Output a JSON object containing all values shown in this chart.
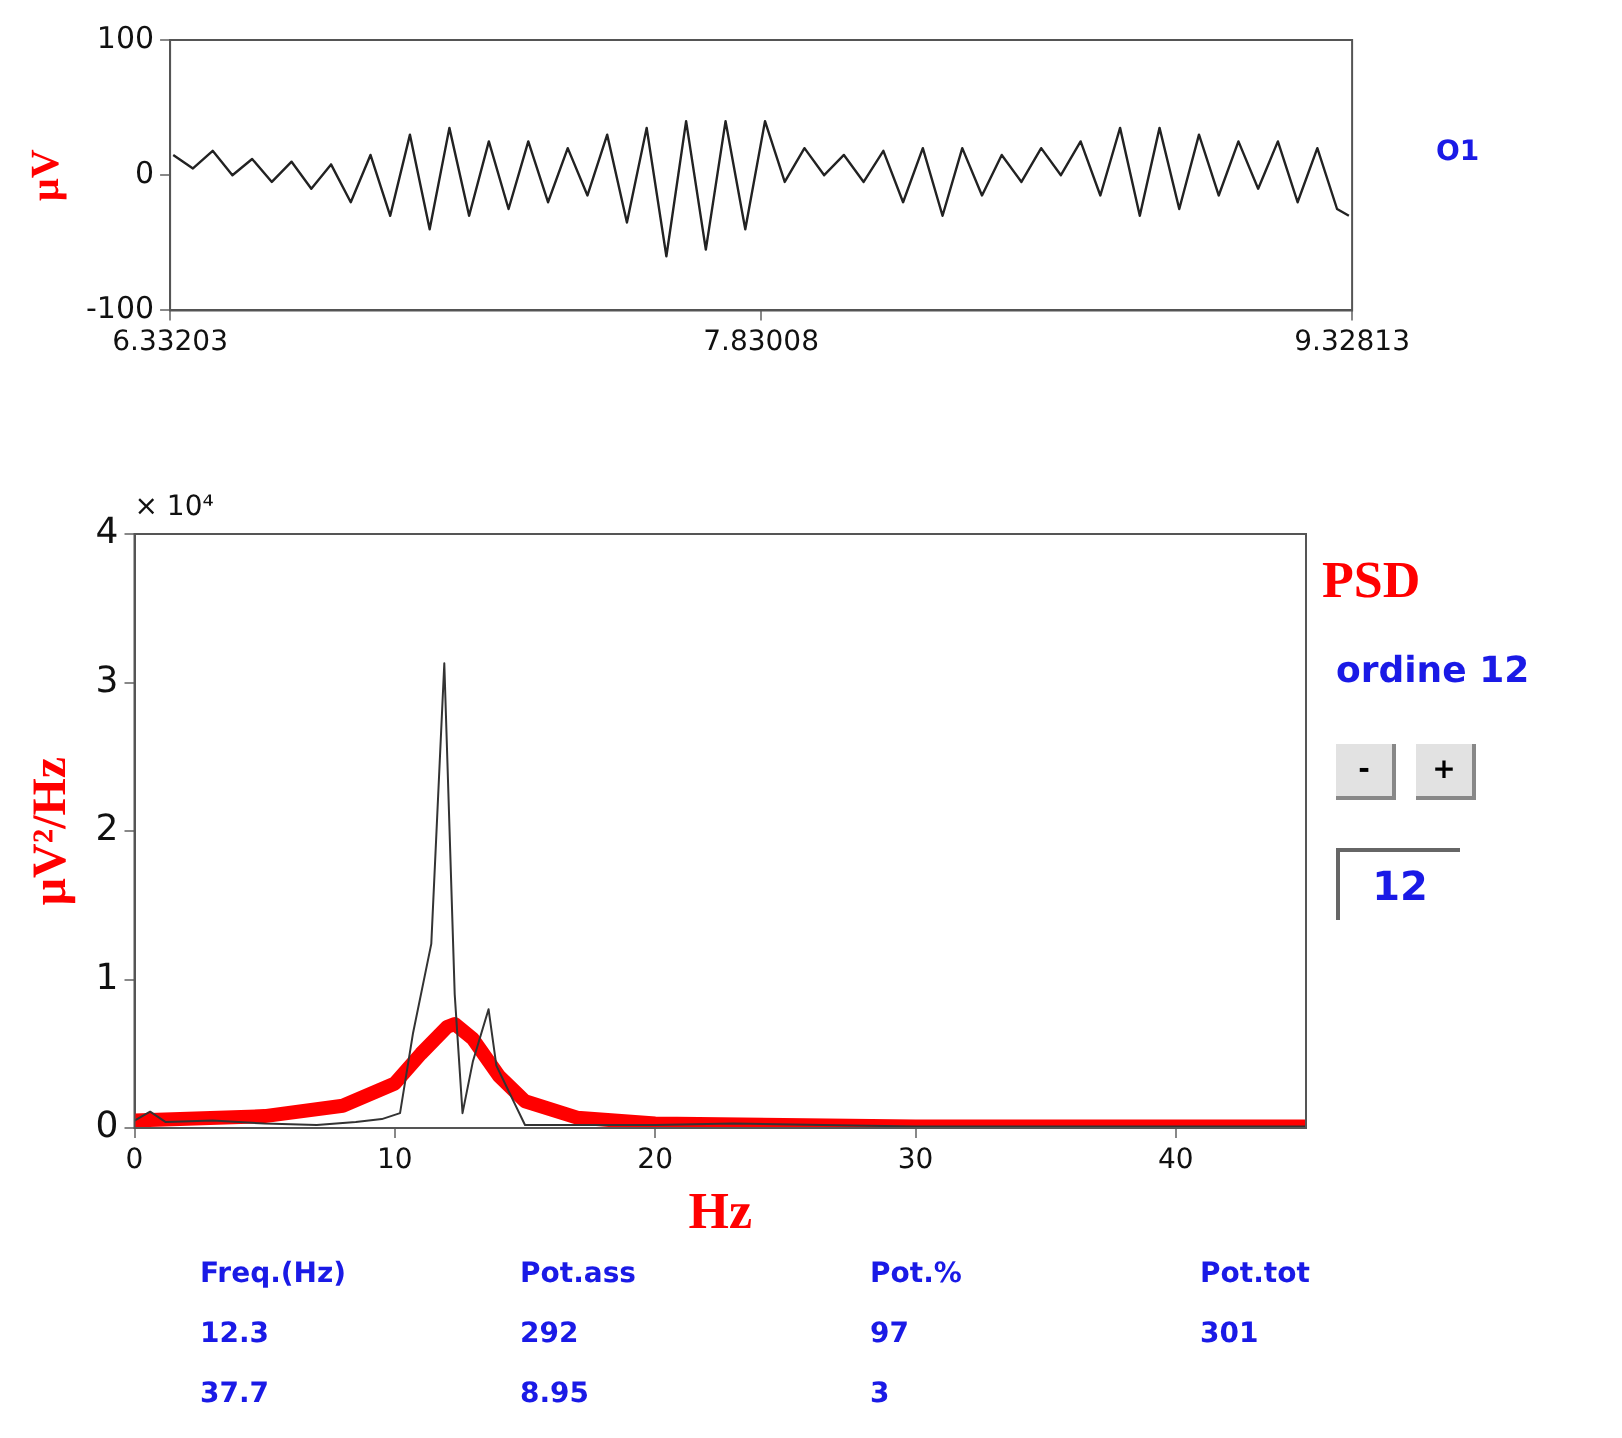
{
  "chart_data": [
    {
      "type": "line",
      "ylabel": "μV",
      "annotations": [
        "O1"
      ],
      "xlim": [
        6.33203,
        9.32813
      ],
      "xticks": [
        6.33203,
        7.83008,
        9.32813
      ],
      "ylim": [
        -100,
        100
      ],
      "yticks": [
        -100,
        0,
        100
      ],
      "grid": false,
      "legend": false,
      "series": [
        {
          "color": "#222222",
          "x": [
            6.34,
            6.39,
            6.44,
            6.49,
            6.54,
            6.59,
            6.64,
            6.69,
            6.74,
            6.79,
            6.84,
            6.89,
            6.94,
            6.99,
            7.04,
            7.09,
            7.14,
            7.19,
            7.24,
            7.29,
            7.34,
            7.39,
            7.44,
            7.49,
            7.54,
            7.59,
            7.64,
            7.69,
            7.74,
            7.79,
            7.84,
            7.89,
            7.94,
            7.99,
            8.04,
            8.09,
            8.14,
            8.19,
            8.24,
            8.29,
            8.34,
            8.39,
            8.44,
            8.49,
            8.54,
            8.59,
            8.64,
            8.69,
            8.74,
            8.79,
            8.84,
            8.89,
            8.94,
            8.99,
            9.04,
            9.09,
            9.14,
            9.19,
            9.24,
            9.29,
            9.32
          ],
          "values": [
            15,
            5,
            18,
            0,
            12,
            -5,
            10,
            -10,
            8,
            -20,
            15,
            -30,
            30,
            -40,
            35,
            -30,
            25,
            -25,
            25,
            -20,
            20,
            -15,
            30,
            -35,
            35,
            -60,
            40,
            -55,
            40,
            -40,
            40,
            -5,
            20,
            0,
            15,
            -5,
            18,
            -20,
            20,
            -30,
            20,
            -15,
            15,
            -5,
            20,
            0,
            25,
            -15,
            35,
            -30,
            35,
            -25,
            30,
            -15,
            25,
            -10,
            25,
            -20,
            20,
            -25,
            -30
          ]
        }
      ]
    },
    {
      "type": "line",
      "title": "PSD",
      "xlabel": "Hz",
      "ylabel": "μV²/Hz",
      "annotations": [
        "× 10⁴",
        "ordine 12",
        "-",
        "+",
        "12"
      ],
      "xlim": [
        0,
        45
      ],
      "xticks": [
        0,
        10,
        20,
        30,
        40
      ],
      "ylim": [
        0,
        4
      ],
      "yticks": [
        0,
        1,
        2,
        3,
        4
      ],
      "grid": false,
      "legend": false,
      "series": [
        {
          "color": "#333333",
          "x": [
            0,
            0.6,
            1.2,
            3,
            5,
            7,
            8.5,
            9.5,
            10.2,
            10.7,
            11.4,
            11.9,
            12.3,
            12.6,
            13.0,
            13.6,
            13.9,
            15,
            20,
            23,
            30,
            45
          ],
          "values": [
            0.05,
            0.11,
            0.04,
            0.05,
            0.03,
            0.02,
            0.04,
            0.06,
            0.1,
            0.64,
            1.24,
            3.13,
            0.9,
            0.1,
            0.45,
            0.8,
            0.42,
            0.02,
            0.02,
            0.03,
            0.01,
            0.01
          ]
        },
        {
          "color": "#ff0000",
          "x": [
            0,
            5,
            8,
            10,
            11,
            12,
            12.3,
            13,
            14,
            15,
            17,
            20,
            30,
            45
          ],
          "values": [
            0.05,
            0.08,
            0.15,
            0.3,
            0.5,
            0.68,
            0.7,
            0.6,
            0.35,
            0.18,
            0.07,
            0.03,
            0.01,
            0.01
          ]
        }
      ]
    },
    {
      "type": "other",
      "annotations": [
        "Freq.(Hz)",
        "Pot.ass",
        "Pot.%",
        "Pot.tot",
        "12.3",
        "292",
        "97",
        "301",
        "37.7",
        "8.95",
        "3"
      ]
    }
  ]
}
